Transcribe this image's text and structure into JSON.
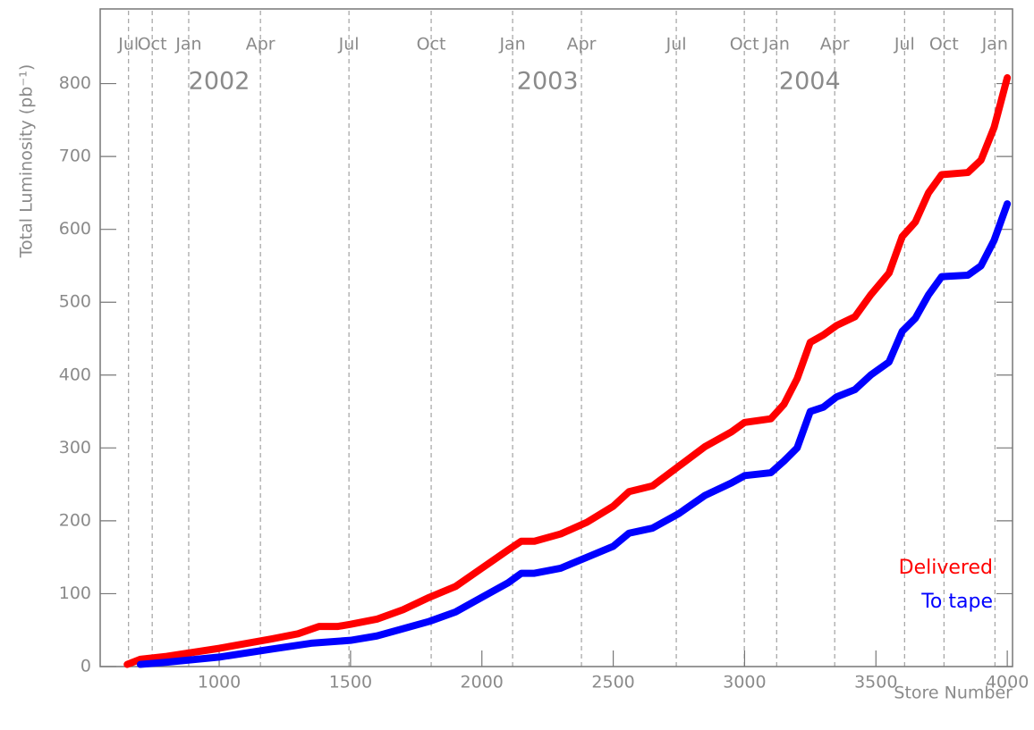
{
  "chart_data": {
    "type": "line",
    "y_label": "Total Luminosity (pb⁻¹)",
    "x_label": "Store Number",
    "xlim": [
      547,
      4020
    ],
    "ylim": [
      0,
      900
    ],
    "xticks": [
      1000,
      1500,
      2000,
      2500,
      3000,
      3500,
      4000
    ],
    "yticks": [
      0,
      100,
      200,
      300,
      400,
      500,
      600,
      700,
      800
    ],
    "markers": [
      {
        "x": 655,
        "label": "Jul"
      },
      {
        "x": 745,
        "label": "Oct"
      },
      {
        "x": 884,
        "label": "Jan"
      },
      {
        "x": 1157,
        "label": "Apr"
      },
      {
        "x": 1494,
        "label": "Jul"
      },
      {
        "x": 1807,
        "label": "Oct"
      },
      {
        "x": 2117,
        "label": "Jan"
      },
      {
        "x": 2379,
        "label": "Apr"
      },
      {
        "x": 2740,
        "label": "Jul"
      },
      {
        "x": 2999,
        "label": "Oct"
      },
      {
        "x": 3122,
        "label": "Jan"
      },
      {
        "x": 3343,
        "label": "Apr"
      },
      {
        "x": 3609,
        "label": "Jul"
      },
      {
        "x": 3759,
        "label": "Oct"
      },
      {
        "x": 3953,
        "label": "Jan"
      }
    ],
    "year_labels": [
      {
        "x": 1000,
        "label": "2002"
      },
      {
        "x": 2250,
        "label": "2003"
      },
      {
        "x": 3248,
        "label": "2004"
      }
    ],
    "series": [
      {
        "name": "Delivered",
        "color": "#ff0000",
        "x": [
          650,
          700,
          800,
          1000,
          1200,
          1300,
          1380,
          1450,
          1500,
          1600,
          1700,
          1800,
          1900,
          2000,
          2100,
          2150,
          2200,
          2300,
          2400,
          2500,
          2560,
          2650,
          2750,
          2850,
          2950,
          3000,
          3100,
          3150,
          3200,
          3250,
          3300,
          3350,
          3420,
          3480,
          3550,
          3600,
          3650,
          3700,
          3750,
          3850,
          3900,
          3950,
          4000
        ],
        "values": [
          3,
          10,
          14,
          25,
          38,
          45,
          55,
          55,
          58,
          65,
          78,
          95,
          110,
          135,
          160,
          172,
          172,
          182,
          198,
          220,
          240,
          248,
          275,
          302,
          322,
          335,
          340,
          360,
          395,
          445,
          455,
          468,
          480,
          510,
          540,
          590,
          610,
          650,
          675,
          678,
          695,
          740,
          808
        ]
      },
      {
        "name": "To tape",
        "color": "#0000ff",
        "x": [
          700,
          800,
          1000,
          1200,
          1350,
          1500,
          1600,
          1700,
          1800,
          1900,
          2000,
          2100,
          2150,
          2200,
          2300,
          2400,
          2500,
          2560,
          2650,
          2750,
          2850,
          2950,
          3000,
          3100,
          3150,
          3200,
          3250,
          3300,
          3350,
          3420,
          3480,
          3550,
          3600,
          3650,
          3700,
          3750,
          3850,
          3900,
          3950,
          4000
        ],
        "values": [
          3,
          6,
          13,
          24,
          32,
          36,
          42,
          52,
          62,
          75,
          95,
          115,
          128,
          128,
          135,
          150,
          165,
          183,
          190,
          210,
          235,
          252,
          262,
          266,
          282,
          300,
          350,
          356,
          370,
          380,
          400,
          418,
          460,
          478,
          510,
          535,
          537,
          550,
          585,
          635
        ]
      }
    ]
  }
}
